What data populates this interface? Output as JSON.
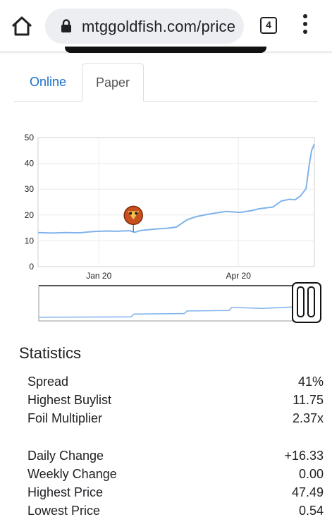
{
  "browser": {
    "url": "mtggoldfish.com/price",
    "tab_count": "4"
  },
  "tabs": [
    {
      "label": "Online",
      "active": false
    },
    {
      "label": "Paper",
      "active": true
    }
  ],
  "chart_data": {
    "type": "line",
    "yticks": [
      "0",
      "10",
      "20",
      "30",
      "40",
      "50"
    ],
    "ylim": [
      0,
      50
    ],
    "xticks": [
      "Jan 20",
      "Apr 20"
    ],
    "series_color": "#7fb2ec",
    "points": [
      [
        0,
        13.2
      ],
      [
        0.05,
        13.0
      ],
      [
        0.1,
        13.2
      ],
      [
        0.15,
        13.1
      ],
      [
        0.2,
        13.6
      ],
      [
        0.25,
        13.8
      ],
      [
        0.28,
        13.7
      ],
      [
        0.33,
        13.9
      ],
      [
        0.35,
        13.3
      ],
      [
        0.37,
        14.0
      ],
      [
        0.42,
        14.5
      ],
      [
        0.47,
        14.9
      ],
      [
        0.5,
        15.3
      ],
      [
        0.54,
        18.2
      ],
      [
        0.57,
        19.3
      ],
      [
        0.61,
        20.2
      ],
      [
        0.65,
        20.9
      ],
      [
        0.68,
        21.4
      ],
      [
        0.73,
        21.0
      ],
      [
        0.77,
        21.6
      ],
      [
        0.8,
        22.4
      ],
      [
        0.85,
        23.1
      ],
      [
        0.88,
        25.4
      ],
      [
        0.91,
        26.1
      ],
      [
        0.93,
        25.9
      ],
      [
        0.95,
        27.4
      ],
      [
        0.97,
        30.2
      ],
      [
        0.98,
        38.5
      ],
      [
        0.99,
        45.0
      ],
      [
        1.0,
        47.5
      ]
    ],
    "navigator_points": [
      [
        0,
        0.15
      ],
      [
        0.33,
        0.17
      ],
      [
        0.34,
        0.35
      ],
      [
        0.52,
        0.38
      ],
      [
        0.53,
        0.55
      ],
      [
        0.68,
        0.58
      ],
      [
        0.69,
        0.78
      ],
      [
        0.8,
        0.72
      ],
      [
        0.92,
        0.82
      ],
      [
        0.96,
        0.9
      ],
      [
        1.0,
        1.0
      ]
    ],
    "marker_x": 0.345
  },
  "statistics": {
    "title": "Statistics",
    "group1": [
      {
        "label": "Spread",
        "value": "41%"
      },
      {
        "label": "Highest Buylist",
        "value": "11.75"
      },
      {
        "label": "Foil Multiplier",
        "value": "2.37x"
      }
    ],
    "group2": [
      {
        "label": "Daily Change",
        "value": "+16.33"
      },
      {
        "label": "Weekly Change",
        "value": "0.00"
      },
      {
        "label": "Highest Price",
        "value": "47.49"
      },
      {
        "label": "Lowest Price",
        "value": "0.54"
      }
    ]
  }
}
